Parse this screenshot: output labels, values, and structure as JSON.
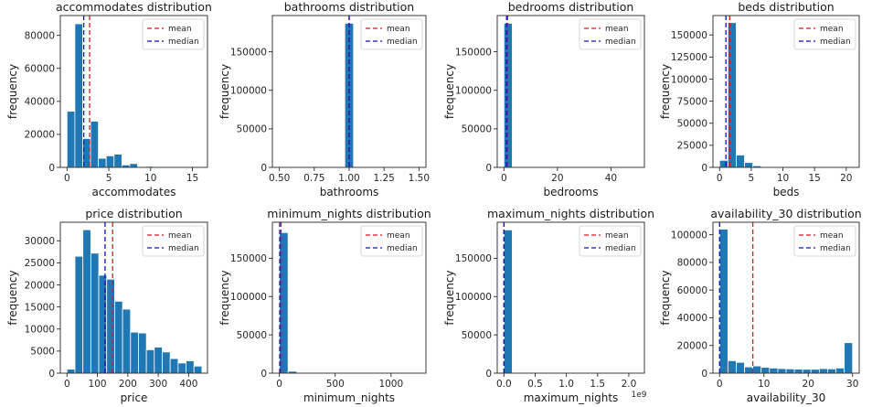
{
  "chart_data": [
    {
      "type": "bar",
      "title": "accommodates distribution",
      "xlabel": "accommodates",
      "ylabel": "frequency",
      "xlim": [
        -0.8,
        16.8
      ],
      "ylim": [
        0,
        92000
      ],
      "xticks": [
        0,
        5,
        10,
        15
      ],
      "yticks": [
        0,
        20000,
        40000,
        60000,
        80000
      ],
      "bin_width": 0.9375,
      "bins": [
        {
          "x0": 0,
          "count": 34000
        },
        {
          "x0": 0.9375,
          "count": 87000
        },
        {
          "x0": 1.875,
          "count": 17500
        },
        {
          "x0": 2.8125,
          "count": 28000
        },
        {
          "x0": 3.75,
          "count": 5500
        },
        {
          "x0": 4.6875,
          "count": 7000
        },
        {
          "x0": 5.625,
          "count": 8000
        },
        {
          "x0": 6.5625,
          "count": 1500
        },
        {
          "x0": 7.5,
          "count": 2300
        },
        {
          "x0": 8.4375,
          "count": 400
        },
        {
          "x0": 9.375,
          "count": 600
        },
        {
          "x0": 10.3125,
          "count": 150
        },
        {
          "x0": 11.25,
          "count": 200
        },
        {
          "x0": 12.1875,
          "count": 80
        },
        {
          "x0": 13.125,
          "count": 50
        },
        {
          "x0": 14.0625,
          "count": 40
        }
      ],
      "mean": 2.7,
      "median": 2.0,
      "legend": [
        "mean",
        "median"
      ],
      "legend_position": "top-right",
      "offset_text": ""
    },
    {
      "type": "bar",
      "title": "bathrooms distribution",
      "xlabel": "bathrooms",
      "ylabel": "frequency",
      "xlim": [
        0.45,
        1.55
      ],
      "ylim": [
        0,
        197000
      ],
      "xticks": [
        0.5,
        0.75,
        1.0,
        1.25,
        1.5
      ],
      "xtick_labels": [
        "0.50",
        "0.75",
        "1.00",
        "1.25",
        "1.50"
      ],
      "yticks": [
        0,
        50000,
        100000,
        150000
      ],
      "bin_width": 0.0625,
      "bins": [
        {
          "x0": 0.96875,
          "count": 187000
        }
      ],
      "mean": 1.0,
      "median": 1.0,
      "legend": [
        "mean",
        "median"
      ],
      "legend_position": "top-right",
      "offset_text": ""
    },
    {
      "type": "bar",
      "title": "bedrooms distribution",
      "xlabel": "bedrooms",
      "ylabel": "frequency",
      "xlim": [
        -2.5,
        52.5
      ],
      "ylim": [
        0,
        197000
      ],
      "xticks": [
        0,
        20,
        40
      ],
      "yticks": [
        0,
        50000,
        100000,
        150000
      ],
      "bin_width": 3.125,
      "bins": [
        {
          "x0": 0,
          "count": 187000
        },
        {
          "x0": 3.125,
          "count": 150
        }
      ],
      "mean": 1.4,
      "median": 1.0,
      "legend": [
        "mean",
        "median"
      ],
      "legend_position": "top-right",
      "offset_text": ""
    },
    {
      "type": "bar",
      "title": "beds distribution",
      "xlabel": "beds",
      "ylabel": "frequency",
      "xlim": [
        -1.05,
        22.05
      ],
      "ylim": [
        0,
        172000
      ],
      "xticks": [
        0,
        5,
        10,
        15,
        20
      ],
      "yticks": [
        0,
        25000,
        50000,
        75000,
        100000,
        125000,
        150000
      ],
      "bin_width": 1.3125,
      "bins": [
        {
          "x0": 0,
          "count": 8000
        },
        {
          "x0": 1.3125,
          "count": 164000
        },
        {
          "x0": 2.625,
          "count": 14000
        },
        {
          "x0": 3.9375,
          "count": 5500
        },
        {
          "x0": 5.25,
          "count": 1800
        },
        {
          "x0": 6.5625,
          "count": 300
        },
        {
          "x0": 7.875,
          "count": 150
        },
        {
          "x0": 9.1875,
          "count": 60
        },
        {
          "x0": 10.5,
          "count": 40
        }
      ],
      "mean": 1.6,
      "median": 1.0,
      "legend": [
        "mean",
        "median"
      ],
      "legend_position": "top-right",
      "offset_text": ""
    },
    {
      "type": "bar",
      "title": "price distribution",
      "xlabel": "price",
      "ylabel": "frequency",
      "xlim": [
        -22,
        462
      ],
      "ylim": [
        0,
        34200
      ],
      "xticks": [
        0,
        100,
        200,
        300,
        400
      ],
      "yticks": [
        0,
        5000,
        10000,
        15000,
        20000,
        25000,
        30000
      ],
      "bin_width": 26.1,
      "bins": [
        {
          "x0": 0,
          "count": 900
        },
        {
          "x0": 26.1,
          "count": 26500
        },
        {
          "x0": 52.2,
          "count": 32500
        },
        {
          "x0": 78.3,
          "count": 27200
        },
        {
          "x0": 104.4,
          "count": 22200
        },
        {
          "x0": 130.5,
          "count": 21300
        },
        {
          "x0": 156.6,
          "count": 16300
        },
        {
          "x0": 182.7,
          "count": 14500
        },
        {
          "x0": 208.8,
          "count": 9300
        },
        {
          "x0": 234.9,
          "count": 9100
        },
        {
          "x0": 261.0,
          "count": 5300
        },
        {
          "x0": 287.1,
          "count": 5900
        },
        {
          "x0": 313.2,
          "count": 4800
        },
        {
          "x0": 339.3,
          "count": 3300
        },
        {
          "x0": 365.4,
          "count": 2300
        },
        {
          "x0": 391.5,
          "count": 2800
        },
        {
          "x0": 417.6,
          "count": 1600
        }
      ],
      "mean": 150,
      "median": 125,
      "legend": [
        "mean",
        "median"
      ],
      "legend_position": "top-right",
      "offset_text": ""
    },
    {
      "type": "bar",
      "title": "minimum_nights distribution",
      "xlabel": "minimum_nights",
      "ylabel": "frequency",
      "xlim": [
        -62.5,
        1312.5
      ],
      "ylim": [
        0,
        197000
      ],
      "xticks": [
        0,
        500,
        1000
      ],
      "yticks": [
        0,
        50000,
        100000,
        150000
      ],
      "bin_width": 78.125,
      "bins": [
        {
          "x0": 0,
          "count": 183500
        },
        {
          "x0": 78.125,
          "count": 2500
        },
        {
          "x0": 156.25,
          "count": 200
        },
        {
          "x0": 234.375,
          "count": 100
        }
      ],
      "mean": 15,
      "median": 3,
      "legend": [
        "mean",
        "median"
      ],
      "legend_position": "top-right",
      "offset_text": ""
    },
    {
      "type": "bar",
      "title": "maximum_nights distribution",
      "xlabel": "maximum_nights",
      "ylabel": "frequency",
      "xlim": [
        -0.107,
        2.25
      ],
      "ylim": [
        0,
        197000
      ],
      "xticks": [
        0.0,
        0.5,
        1.0,
        1.5,
        2.0
      ],
      "xtick_labels": [
        "0.0",
        "0.5",
        "1.0",
        "1.5",
        "2.0"
      ],
      "yticks": [
        0,
        50000,
        100000,
        150000
      ],
      "bin_width": 0.134,
      "bins": [
        {
          "x0": 0,
          "count": 187000
        }
      ],
      "mean": 0.002,
      "median": 1e-06,
      "legend": [
        "mean",
        "median"
      ],
      "legend_position": "top-right",
      "offset_text": "1e9"
    },
    {
      "type": "bar",
      "title": "availability_30 distribution",
      "xlabel": "availability_30",
      "ylabel": "frequency",
      "xlim": [
        -1.5,
        31.5
      ],
      "ylim": [
        0,
        109000
      ],
      "xticks": [
        0,
        10,
        20,
        30
      ],
      "yticks": [
        0,
        20000,
        40000,
        60000,
        80000,
        100000
      ],
      "bin_width": 1.875,
      "bins": [
        {
          "x0": 0,
          "count": 104000
        },
        {
          "x0": 1.875,
          "count": 9000
        },
        {
          "x0": 3.75,
          "count": 7800
        },
        {
          "x0": 5.625,
          "count": 4500
        },
        {
          "x0": 7.5,
          "count": 5200
        },
        {
          "x0": 9.375,
          "count": 4200
        },
        {
          "x0": 11.25,
          "count": 3700
        },
        {
          "x0": 13.125,
          "count": 3300
        },
        {
          "x0": 15.0,
          "count": 3100
        },
        {
          "x0": 16.875,
          "count": 2900
        },
        {
          "x0": 18.75,
          "count": 2800
        },
        {
          "x0": 20.625,
          "count": 2800
        },
        {
          "x0": 22.5,
          "count": 3300
        },
        {
          "x0": 24.375,
          "count": 3100
        },
        {
          "x0": 26.25,
          "count": 3700
        },
        {
          "x0": 28.125,
          "count": 22000
        }
      ],
      "mean": 7.5,
      "median": 0,
      "legend": [
        "mean",
        "median"
      ],
      "legend_position": "top-right",
      "offset_text": ""
    }
  ],
  "colors": {
    "bar": "#1f77b4",
    "bar_edge": "#ffffff",
    "mean_line": "#e8141c",
    "median_line": "#1010c8",
    "axes": "#262626",
    "text": "#1a1a1a"
  }
}
